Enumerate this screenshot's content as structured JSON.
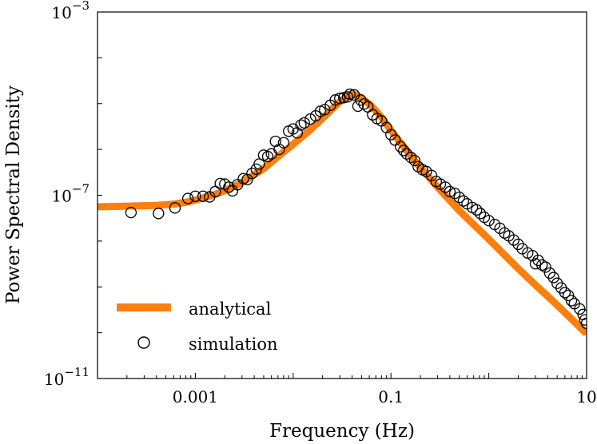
{
  "chart_data": {
    "type": "scatter",
    "xlabel": "Frequency (Hz)",
    "ylabel": "Power Spectral Density",
    "x_scale": "log",
    "y_scale": "log",
    "xlim": [
      0.0001,
      10
    ],
    "ylim": [
      1e-11,
      0.001
    ],
    "x_ticks": [
      {
        "value": 0.001,
        "label": "0.001"
      },
      {
        "value": 0.1,
        "label": "0.1"
      },
      {
        "value": 10,
        "label": "10"
      }
    ],
    "y_ticks": [
      {
        "value": 1e-11,
        "base": "10",
        "exp": "−11"
      },
      {
        "value": 1e-07,
        "base": "10",
        "exp": "−7"
      },
      {
        "value": 0.001,
        "base": "10",
        "exp": "−3"
      }
    ],
    "grid": false,
    "legend_position": "lower-left",
    "colors": {
      "analytical": "#ff7f0e",
      "simulation": "#000000"
    },
    "series": [
      {
        "name": "analytical",
        "style": "line",
        "points": [
          [
            0.0001,
            5.6e-08
          ],
          [
            0.0002,
            5.8e-08
          ],
          [
            0.0004,
            6e-08
          ],
          [
            0.0006,
            6.4e-08
          ],
          [
            0.0008,
            7e-08
          ],
          [
            0.001,
            7.8e-08
          ],
          [
            0.0015,
            1e-07
          ],
          [
            0.002,
            1.25e-07
          ],
          [
            0.003,
            1.9e-07
          ],
          [
            0.005,
            3.8e-07
          ],
          [
            0.007,
            7e-07
          ],
          [
            0.01,
            1.3e-06
          ],
          [
            0.015,
            2.7e-06
          ],
          [
            0.02,
            4.8e-06
          ],
          [
            0.025,
            7.6e-06
          ],
          [
            0.03,
            1.1e-05
          ],
          [
            0.035,
            1.4e-05
          ],
          [
            0.04,
            1.6e-05
          ],
          [
            0.045,
            1.5e-05
          ],
          [
            0.05,
            1.3e-05
          ],
          [
            0.06,
            9.8e-06
          ],
          [
            0.07,
            7e-06
          ],
          [
            0.08,
            5e-06
          ],
          [
            0.1,
            2.6e-06
          ],
          [
            0.15,
            8.5e-07
          ],
          [
            0.2,
            4e-07
          ],
          [
            0.3,
            1.5e-07
          ],
          [
            0.5,
            4.6e-08
          ],
          [
            1,
            1.1e-08
          ],
          [
            2,
            2.5e-09
          ],
          [
            3,
            1.1e-09
          ],
          [
            5,
            4e-10
          ],
          [
            7,
            2e-10
          ],
          [
            10,
            9.5e-11
          ]
        ]
      },
      {
        "name": "simulation",
        "style": "markers",
        "points": [
          [
            0.00022,
            4.2e-08
          ],
          [
            0.00042,
            4e-08
          ],
          [
            0.00062,
            5.3e-08
          ],
          [
            0.00084,
            8.5e-08
          ],
          [
            0.001,
            9.5e-08
          ],
          [
            0.0012,
            9.5e-08
          ],
          [
            0.0014,
            9.2e-08
          ],
          [
            0.0016,
            1.2e-07
          ],
          [
            0.0018,
            1.8e-07
          ],
          [
            0.002,
            1.75e-07
          ],
          [
            0.0022,
            1.5e-07
          ],
          [
            0.0024,
            1.25e-07
          ],
          [
            0.0027,
            1.7e-07
          ],
          [
            0.0031,
            2.3e-07
          ],
          [
            0.0034,
            2.2e-07
          ],
          [
            0.0038,
            3e-07
          ],
          [
            0.0042,
            3.7e-07
          ],
          [
            0.0045,
            4.8e-07
          ],
          [
            0.005,
            7.5e-07
          ],
          [
            0.0055,
            7e-07
          ],
          [
            0.006,
            8e-07
          ],
          [
            0.0066,
            1.5e-06
          ],
          [
            0.0072,
            1e-06
          ],
          [
            0.008,
            1.4e-06
          ],
          [
            0.009,
            2.5e-06
          ],
          [
            0.01,
            2.8e-06
          ],
          [
            0.011,
            2.3e-06
          ],
          [
            0.012,
            3.4e-06
          ],
          [
            0.013,
            3.8e-06
          ],
          [
            0.015,
            4.6e-06
          ],
          [
            0.017,
            5.4e-06
          ],
          [
            0.019,
            6.8e-06
          ],
          [
            0.021,
            7.4e-06
          ],
          [
            0.024,
            9.2e-06
          ],
          [
            0.027,
            1.2e-05
          ],
          [
            0.03,
            1.3e-05
          ],
          [
            0.033,
            1.35e-05
          ],
          [
            0.036,
            1.4e-05
          ],
          [
            0.038,
            1.6e-05
          ],
          [
            0.042,
            1.55e-05
          ],
          [
            0.046,
            8.8e-06
          ],
          [
            0.049,
            1.2e-05
          ],
          [
            0.053,
            9.8e-06
          ],
          [
            0.058,
            8.5e-06
          ],
          [
            0.065,
            5.7e-06
          ],
          [
            0.072,
            4.7e-06
          ],
          [
            0.08,
            4.2e-06
          ],
          [
            0.09,
            3e-06
          ],
          [
            0.1,
            2.1e-06
          ],
          [
            0.11,
            1.6e-06
          ],
          [
            0.125,
            1.15e-06
          ],
          [
            0.135,
            9.5e-07
          ],
          [
            0.145,
            8e-07
          ],
          [
            0.16,
            6.7e-07
          ],
          [
            0.175,
            5.7e-07
          ],
          [
            0.19,
            4.2e-07
          ],
          [
            0.21,
            3.6e-07
          ],
          [
            0.23,
            3.3e-07
          ],
          [
            0.26,
            2.7e-07
          ],
          [
            0.29,
            2e-07
          ],
          [
            0.32,
            1.75e-07
          ],
          [
            0.36,
            1.5e-07
          ],
          [
            0.4,
            1.2e-07
          ],
          [
            0.45,
            1.1e-07
          ],
          [
            0.5,
            9e-08
          ],
          [
            0.55,
            7.5e-08
          ],
          [
            0.6,
            6.5e-08
          ],
          [
            0.68,
            5.4e-08
          ],
          [
            0.75,
            4.8e-08
          ],
          [
            0.82,
            4e-08
          ],
          [
            0.9,
            3.3e-08
          ],
          [
            1.0,
            2.8e-08
          ],
          [
            1.15,
            2.3e-08
          ],
          [
            1.3,
            1.9e-08
          ],
          [
            1.45,
            1.5e-08
          ],
          [
            1.6,
            1.3e-08
          ],
          [
            1.8,
            1.05e-08
          ],
          [
            2.0,
            8.5e-09
          ],
          [
            2.2,
            6.8e-09
          ],
          [
            2.5,
            5.5e-09
          ],
          [
            2.8,
            4.8e-09
          ],
          [
            3.0,
            3.2e-09
          ],
          [
            3.2,
            3.8e-09
          ],
          [
            3.5,
            3e-09
          ],
          [
            3.8,
            2.7e-09
          ],
          [
            4.2,
            2e-09
          ],
          [
            4.6,
            1.6e-09
          ],
          [
            5.0,
            1.2e-09
          ],
          [
            5.5,
            9.5e-10
          ],
          [
            6.0,
            7.5e-10
          ],
          [
            6.5,
            6.5e-10
          ],
          [
            7.0,
            5e-10
          ],
          [
            7.5,
            4.3e-10
          ],
          [
            8.5,
            3.3e-10
          ],
          [
            9.2,
            2.5e-10
          ],
          [
            9.6,
            1.9e-10
          ],
          [
            10.0,
            1.6e-10
          ]
        ]
      }
    ]
  }
}
